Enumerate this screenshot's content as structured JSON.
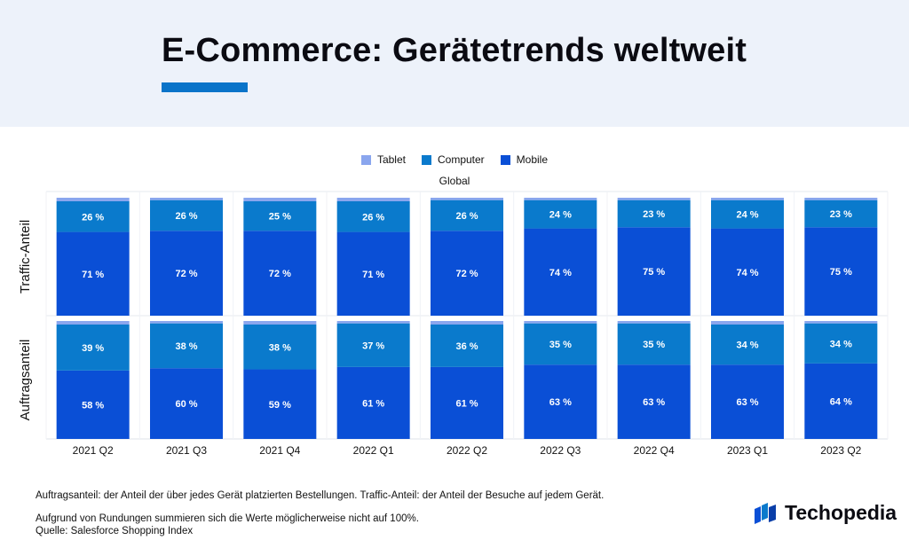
{
  "header": {
    "title": "E-Commerce: Gerätetrends weltweit"
  },
  "colors": {
    "tablet": "#8aa6ee",
    "computer": "#0a7acc",
    "mobile": "#0a4fd6",
    "accent": "#0a74c9",
    "header_bg": "#edf2fa"
  },
  "chart_data": {
    "type": "bar",
    "stacked": true,
    "subtitle": "Global",
    "legend": [
      "Tablet",
      "Computer",
      "Mobile"
    ],
    "categories": [
      "2021 Q2",
      "2021 Q3",
      "2021 Q4",
      "2022 Q1",
      "2022 Q2",
      "2022 Q3",
      "2022 Q4",
      "2023 Q1",
      "2023 Q2"
    ],
    "panels": [
      {
        "label": "Traffic-Anteil",
        "series": [
          {
            "name": "Mobile",
            "values": [
              71,
              72,
              72,
              71,
              72,
              74,
              75,
              74,
              75
            ]
          },
          {
            "name": "Computer",
            "values": [
              26,
              26,
              25,
              26,
              26,
              24,
              23,
              24,
              23
            ]
          },
          {
            "name": "Tablet",
            "values": [
              3,
              2,
              3,
              3,
              2,
              2,
              2,
              2,
              2
            ]
          }
        ]
      },
      {
        "label": "Auftragsanteil",
        "series": [
          {
            "name": "Mobile",
            "values": [
              58,
              60,
              59,
              61,
              61,
              63,
              63,
              63,
              64
            ]
          },
          {
            "name": "Computer",
            "values": [
              39,
              38,
              38,
              37,
              36,
              35,
              35,
              34,
              34
            ]
          },
          {
            "name": "Tablet",
            "values": [
              3,
              2,
              3,
              2,
              3,
              2,
              2,
              3,
              2
            ]
          }
        ]
      }
    ],
    "ylim": [
      0,
      100
    ],
    "label_suffix": " %"
  },
  "footer": {
    "note1": "Auftragsanteil: der Anteil der über jedes Gerät platzierten Bestellungen. Traffic-Anteil: der Anteil der Besuche auf jedem Gerät.",
    "note2": "Aufgrund von Rundungen summieren sich die Werte möglicherweise nicht auf 100%.",
    "source": "Quelle: Salesforce Shopping Index"
  },
  "brand": {
    "name": "Techopedia",
    "icon": "techopedia-logo-icon"
  }
}
